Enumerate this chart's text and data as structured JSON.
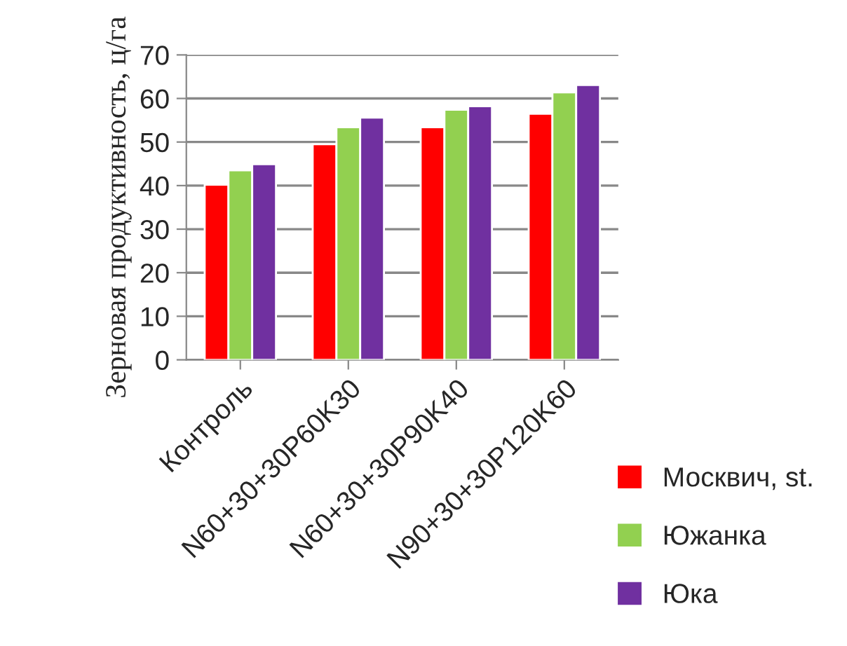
{
  "chart_data": {
    "type": "bar",
    "ylabel": "Зерновая продуктивность, ц/га",
    "categories": [
      "Контроль",
      "N60+30+30P60K30",
      "N60+30+30P90K40",
      "N90+30+30P120K60"
    ],
    "series": [
      {
        "name": "Москвич, st.",
        "color": "#ff0000",
        "values": [
          40.2,
          49.5,
          53.4,
          56.5
        ]
      },
      {
        "name": "Южанка",
        "color": "#92d050",
        "values": [
          43.5,
          53.4,
          57.4,
          61.4
        ]
      },
      {
        "name": "Юка",
        "color": "#7030a0",
        "values": [
          44.9,
          55.6,
          58.2,
          63.1
        ]
      }
    ],
    "ylim": [
      0,
      70
    ],
    "yticks": [
      0,
      10,
      20,
      30,
      40,
      50,
      60,
      70
    ],
    "grid": "y",
    "legend": "bottom right"
  }
}
